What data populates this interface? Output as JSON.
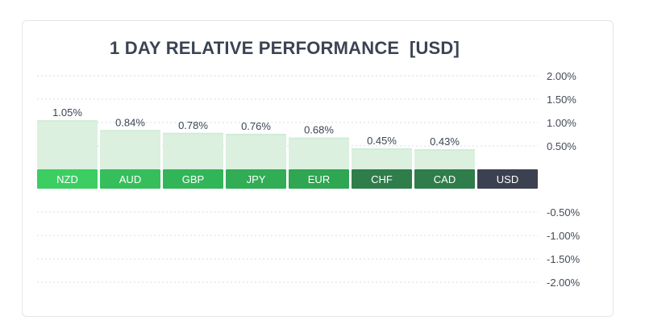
{
  "colors": {
    "card_border": "#e3e5e8",
    "grid": "#d9dde2",
    "bar_fill": "#dbf0df",
    "bar_fill_top": "#cfeed6",
    "label_text": "#3c4453",
    "tick_text": "#444b57",
    "strip_text": "#ffffff"
  },
  "chart_data": {
    "type": "bar",
    "title": "1 DAY RELATIVE PERFORMANCE  [USD]",
    "xlabel": "",
    "ylabel": "",
    "ylim": [
      -2.0,
      2.0
    ],
    "y_ticks": [
      {
        "value": 2.0,
        "label": "2.00%"
      },
      {
        "value": 1.5,
        "label": "1.50%"
      },
      {
        "value": 1.0,
        "label": "1.00%"
      },
      {
        "value": 0.5,
        "label": "0.50%"
      },
      {
        "value": -0.5,
        "label": "-0.50%"
      },
      {
        "value": -1.0,
        "label": "-1.00%"
      },
      {
        "value": -1.5,
        "label": "-1.50%"
      },
      {
        "value": -2.0,
        "label": "-2.00%"
      }
    ],
    "grid": true,
    "legend": "none",
    "categories": [
      "NZD",
      "AUD",
      "GBP",
      "JPY",
      "EUR",
      "CHF",
      "CAD",
      "USD"
    ],
    "values": [
      1.05,
      0.84,
      0.78,
      0.76,
      0.68,
      0.45,
      0.43,
      0
    ],
    "value_labels": [
      "1.05%",
      "0.84%",
      "0.78%",
      "0.76%",
      "0.68%",
      "0.45%",
      "0.43%",
      ""
    ],
    "strip_colors": [
      "#3ccd63",
      "#35be5b",
      "#32b558",
      "#30ad55",
      "#2ea652",
      "#2f7d4a",
      "#2f7d4a",
      "#3b4150"
    ]
  }
}
